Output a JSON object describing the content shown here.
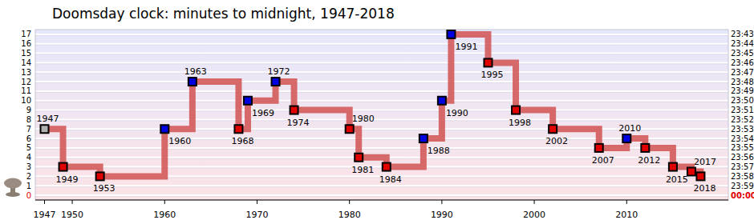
{
  "chart_data": {
    "type": "line",
    "title": "Doomsday clock: minutes to midnight, 1947-2018",
    "x": [
      1947,
      1949,
      1953,
      1960,
      1963,
      1968,
      1969,
      1972,
      1974,
      1980,
      1981,
      1984,
      1988,
      1990,
      1991,
      1995,
      1998,
      2002,
      2007,
      2010,
      2012,
      2015,
      2017,
      2018
    ],
    "values": [
      7,
      3,
      2,
      7,
      12,
      7,
      10,
      12,
      9,
      7,
      4,
      3,
      6,
      10,
      17,
      14,
      9,
      7,
      5,
      6,
      5,
      3,
      2.5,
      2
    ],
    "colors": [
      "#b0b0b0",
      "#e00000",
      "#e00000",
      "#0000e0",
      "#0000e0",
      "#e00000",
      "#0000e0",
      "#0000e0",
      "#e00000",
      "#e00000",
      "#e00000",
      "#e00000",
      "#0000e0",
      "#0000e0",
      "#0000e0",
      "#e00000",
      "#e00000",
      "#e00000",
      "#e00000",
      "#0000e0",
      "#e00000",
      "#e00000",
      "#e00000",
      "#e00000"
    ],
    "color": "#d35a5a",
    "marker": "square",
    "line_style": "steps",
    "grid": true,
    "xlim": [
      1946,
      2021
    ],
    "xticks": [
      1947,
      1950,
      1960,
      1970,
      1980,
      1990,
      2000,
      2010
    ],
    "ylim": [
      -0.5,
      17.5
    ],
    "yticks": [
      0,
      1,
      2,
      3,
      4,
      5,
      6,
      7,
      8,
      9,
      10,
      11,
      12,
      13,
      14,
      15,
      16,
      17
    ],
    "y2lim": [
      -0.5,
      17.5
    ],
    "y2ticks": [
      {
        "value": 0,
        "label": "00:00"
      },
      {
        "value": 1,
        "label": "23:59"
      },
      {
        "value": 2,
        "label": "23:58"
      },
      {
        "value": 3,
        "label": "23:57"
      },
      {
        "value": 4,
        "label": "23:56"
      },
      {
        "value": 5,
        "label": "23:55"
      },
      {
        "value": 6,
        "label": "23:54"
      },
      {
        "value": 7,
        "label": "23:53"
      },
      {
        "value": 8,
        "label": "23:52"
      },
      {
        "value": 9,
        "label": "23:51"
      },
      {
        "value": 10,
        "label": "23:50"
      },
      {
        "value": 11,
        "label": "23:49"
      },
      {
        "value": 12,
        "label": "23:48"
      },
      {
        "value": 13,
        "label": "23:47"
      },
      {
        "value": 14,
        "label": "23:46"
      },
      {
        "value": 15,
        "label": "23:45"
      },
      {
        "value": 16,
        "label": "23:44"
      },
      {
        "value": 17,
        "label": "23:43"
      }
    ]
  }
}
